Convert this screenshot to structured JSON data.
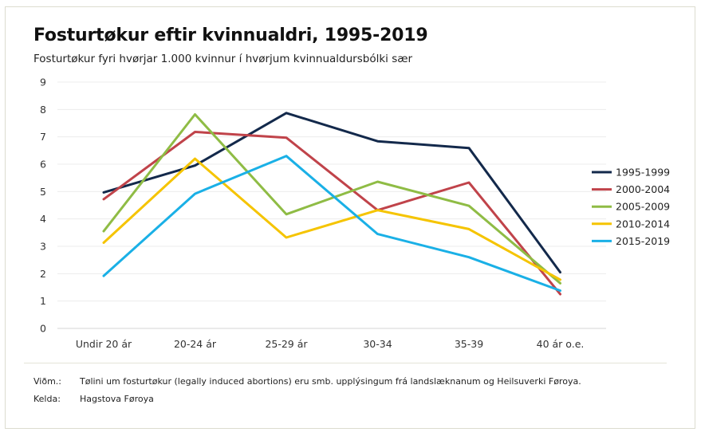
{
  "header": {
    "title": "Fosturtøkur eftir kvinnualdri, 1995-2019",
    "subtitle": "Fosturtøkur fyri hvørjar 1.000 kvinnur í hvørjum kvinnualdursbólki sær"
  },
  "chart_data": {
    "type": "line",
    "title": "Fosturtøkur eftir kvinnualdri, 1995-2019",
    "subtitle": "Fosturtøkur fyri hvørjar 1.000 kvinnur í hvørjum kvinnualdursbólki sær",
    "categories": [
      "Undir 20 ár",
      "20-24 ár",
      "25-29 ár",
      "30-34",
      "35-39",
      "40 ár o.e."
    ],
    "ylim": [
      0,
      9
    ],
    "yticks": [
      0,
      1,
      2,
      3,
      4,
      5,
      6,
      7,
      8,
      9
    ],
    "grid": true,
    "legend": "right",
    "series": [
      {
        "name": "1995-1999",
        "color": "#13294b",
        "values": [
          4.97,
          5.95,
          7.87,
          6.84,
          6.59,
          2.05
        ]
      },
      {
        "name": "2000-2004",
        "color": "#c0434a",
        "values": [
          4.72,
          7.18,
          6.97,
          4.32,
          5.33,
          1.25
        ]
      },
      {
        "name": "2005-2009",
        "color": "#8fbc45",
        "values": [
          3.55,
          7.82,
          4.17,
          5.36,
          4.48,
          1.65
        ]
      },
      {
        "name": "2010-2014",
        "color": "#f5c400",
        "values": [
          3.13,
          6.2,
          3.32,
          4.32,
          3.63,
          1.78
        ]
      },
      {
        "name": "2015-2019",
        "color": "#1ab0e6",
        "values": [
          1.92,
          4.92,
          6.3,
          3.45,
          2.6,
          1.38
        ]
      }
    ]
  },
  "notes": {
    "note_label": "Viðm.:",
    "note_text": "Tølini um fosturtøkur (legally induced abortions) eru smb. upplýsingum frá landslæknanum og Heilsuverki Føroya.",
    "source_label": "Kelda:",
    "source_text": "Hagstova Føroya"
  }
}
